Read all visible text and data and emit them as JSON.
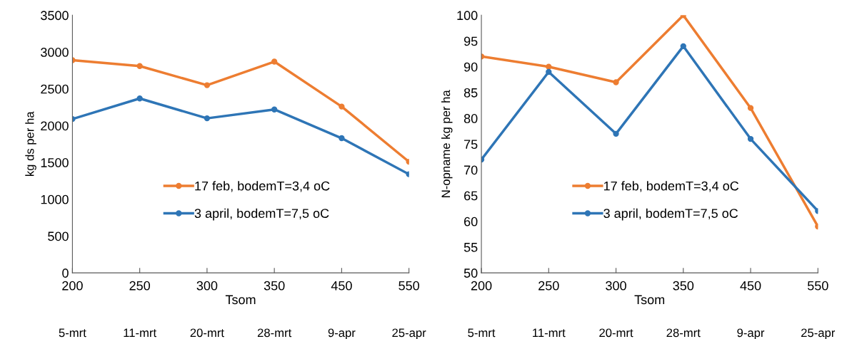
{
  "chart_data": [
    {
      "type": "line",
      "xlabel": "Tsom",
      "ylabel": "kg ds per ha",
      "categories": [
        "200",
        "250",
        "300",
        "350",
        "450",
        "550"
      ],
      "series": [
        {
          "name": "17 feb, bodemT=3,4 oC",
          "color": "#ed7d31",
          "values": [
            2890,
            2810,
            2550,
            2870,
            2260,
            1510
          ]
        },
        {
          "name": "3 april, bodemT=7,5 oC",
          "color": "#2e75b6",
          "values": [
            2090,
            2370,
            2100,
            2220,
            1830,
            1340
          ]
        }
      ],
      "ylim": [
        0,
        3500
      ],
      "yticks": [
        0,
        500,
        1000,
        1500,
        2000,
        2500,
        3000,
        3500
      ],
      "grid": false,
      "legend": "center right",
      "marker": "circle",
      "line_style": "solid",
      "annotations": [
        "5-mrt",
        "11-mrt",
        "20-mrt",
        "28-mrt",
        "9-apr",
        "25-apr"
      ]
    },
    {
      "type": "line",
      "xlabel": "Tsom",
      "ylabel": "N-opname kg per ha",
      "categories": [
        "200",
        "250",
        "300",
        "350",
        "450",
        "550"
      ],
      "series": [
        {
          "name": "17 feb, bodemT=3,4 oC",
          "color": "#ed7d31",
          "values": [
            92,
            90,
            87,
            100,
            82,
            59
          ]
        },
        {
          "name": "3 april, bodemT=7,5 oC",
          "color": "#2e75b6",
          "values": [
            72,
            89,
            77,
            94,
            76,
            62
          ]
        }
      ],
      "ylim": [
        50,
        100
      ],
      "yticks": [
        50,
        55,
        60,
        65,
        70,
        75,
        80,
        85,
        90,
        95,
        100
      ],
      "grid": false,
      "legend": "center right",
      "marker": "circle",
      "line_style": "solid",
      "annotations": [
        "5-mrt",
        "11-mrt",
        "20-mrt",
        "28-mrt",
        "9-apr",
        "25-apr"
      ]
    }
  ]
}
